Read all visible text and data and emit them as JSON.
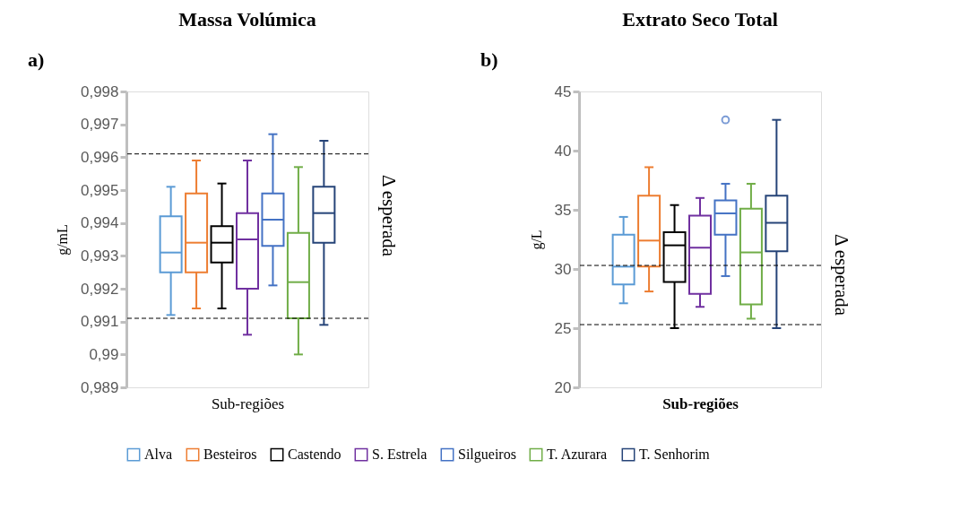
{
  "chart_data": [
    {
      "type": "box",
      "title": "Massa Volúmica",
      "xlabel": "Sub-regiões",
      "ylabel": "g/mL",
      "categories": [
        null
      ],
      "ylim": [
        0.989,
        0.998
      ],
      "yticks": [
        {
          "value": 0.989,
          "label": "0,989"
        },
        {
          "value": 0.99,
          "label": "0,99"
        },
        {
          "value": 0.991,
          "label": "0,991"
        },
        {
          "value": 0.992,
          "label": "0,992"
        },
        {
          "value": 0.993,
          "label": "0,993"
        },
        {
          "value": 0.994,
          "label": "0,994"
        },
        {
          "value": 0.995,
          "label": "0,995"
        },
        {
          "value": 0.996,
          "label": "0,996"
        },
        {
          "value": 0.997,
          "label": "0,997"
        },
        {
          "value": 0.998,
          "label": "0,998"
        }
      ],
      "series": [
        {
          "name": "Alva",
          "color": "#5b9bd5",
          "boxes": [
            {
              "low": 0.9912,
              "q1": 0.9925,
              "median": 0.9931,
              "q3": 0.9942,
              "high": 0.9951
            }
          ]
        },
        {
          "name": "Besteiros",
          "color": "#ed7d31",
          "boxes": [
            {
              "low": 0.9914,
              "q1": 0.9925,
              "median": 0.9934,
              "q3": 0.9949,
              "high": 0.9959
            }
          ]
        },
        {
          "name": "Castendo",
          "color": "#000000",
          "boxes": [
            {
              "low": 0.9914,
              "q1": 0.9928,
              "median": 0.9934,
              "q3": 0.9939,
              "high": 0.9952
            }
          ]
        },
        {
          "name": "S. Estrela",
          "color": "#7030a0",
          "boxes": [
            {
              "low": 0.9906,
              "q1": 0.992,
              "median": 0.9935,
              "q3": 0.9943,
              "high": 0.9959
            }
          ]
        },
        {
          "name": "Silgueiros",
          "color": "#4472c4",
          "boxes": [
            {
              "low": 0.9921,
              "q1": 0.9933,
              "median": 0.9941,
              "q3": 0.9949,
              "high": 0.9967
            }
          ]
        },
        {
          "name": "T. Azurara",
          "color": "#70ad47",
          "boxes": [
            {
              "low": 0.99,
              "q1": 0.9911,
              "median": 0.9922,
              "q3": 0.9937,
              "high": 0.9957
            }
          ]
        },
        {
          "name": "T. Senhorim",
          "color": "#264478",
          "boxes": [
            {
              "low": 0.9909,
              "q1": 0.9934,
              "median": 0.9943,
              "q3": 0.9951,
              "high": 0.9965
            }
          ]
        }
      ],
      "ref_lines": [
        {
          "axis": "y",
          "value": 0.9961,
          "color": "#000000",
          "line_style": "dashed"
        },
        {
          "axis": "y",
          "value": 0.9911,
          "color": "#000000",
          "line_style": "dashed"
        }
      ],
      "annotations": [
        "a)",
        "Δ esperada"
      ],
      "legend": "bottom",
      "tick_labels": "y"
    },
    {
      "type": "box",
      "title": "Extrato Seco Total",
      "xlabel": "Sub-regiões",
      "ylabel": "g/L",
      "categories": [
        null
      ],
      "ylim": [
        20,
        45
      ],
      "yticks": [
        20,
        25,
        30,
        35,
        40,
        45
      ],
      "series": [
        {
          "name": "Alva",
          "color": "#5b9bd5",
          "boxes": [
            {
              "low": 27.1,
              "q1": 28.7,
              "median": 30.2,
              "q3": 32.9,
              "high": 34.4
            }
          ]
        },
        {
          "name": "Besteiros",
          "color": "#ed7d31",
          "boxes": [
            {
              "low": 28.1,
              "q1": 30.2,
              "median": 32.4,
              "q3": 36.2,
              "high": 38.6
            }
          ]
        },
        {
          "name": "Castendo",
          "color": "#000000",
          "boxes": [
            {
              "low": 25.0,
              "q1": 28.9,
              "median": 32.0,
              "q3": 33.1,
              "high": 35.4
            }
          ]
        },
        {
          "name": "S. Estrela",
          "color": "#7030a0",
          "boxes": [
            {
              "low": 26.8,
              "q1": 27.9,
              "median": 31.8,
              "q3": 34.5,
              "high": 36.0
            }
          ]
        },
        {
          "name": "Silgueiros",
          "color": "#4472c4",
          "boxes": [
            {
              "low": 29.4,
              "q1": 32.9,
              "median": 34.7,
              "q3": 35.8,
              "high": 37.2,
              "outliers": [
                42.6
              ]
            }
          ]
        },
        {
          "name": "T. Azurara",
          "color": "#70ad47",
          "boxes": [
            {
              "low": 25.8,
              "q1": 27.0,
              "median": 31.4,
              "q3": 35.1,
              "high": 37.2
            }
          ]
        },
        {
          "name": "T. Senhorim",
          "color": "#264478",
          "boxes": [
            {
              "low": 25.0,
              "q1": 31.5,
              "median": 33.9,
              "q3": 36.2,
              "high": 42.6
            }
          ]
        }
      ],
      "ref_lines": [
        {
          "axis": "y",
          "value": 30.3,
          "color": "#000000",
          "line_style": "dashed"
        },
        {
          "axis": "y",
          "value": 25.3,
          "color": "#000000",
          "line_style": "dashed"
        }
      ],
      "annotations": [
        "b)",
        "Δ esperada"
      ],
      "legend": "bottom",
      "tick_labels": "y"
    }
  ]
}
